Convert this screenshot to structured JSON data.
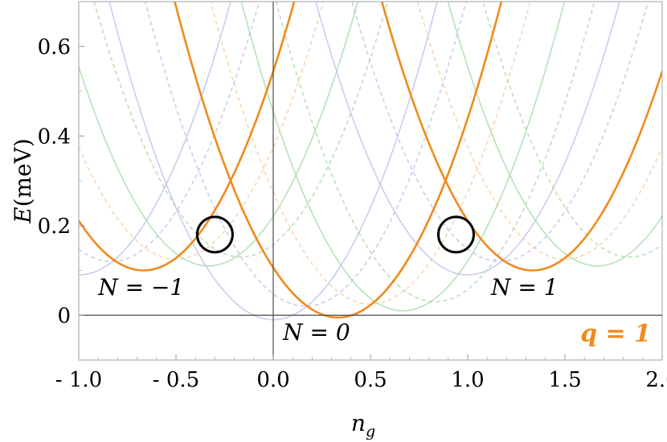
{
  "chart_data": {
    "type": "line",
    "title": "",
    "xlabel": "n_g",
    "xlabel_main": "n",
    "xlabel_sub": "g",
    "ylabel": "E(meV)",
    "ylabel_italic": "E",
    "ylabel_rest": "(meV)",
    "xlim": [
      -1.0,
      2.0
    ],
    "ylim": [
      -0.1,
      0.7
    ],
    "x_ticks": [
      {
        "value": -1.0,
        "label": "- 1.0"
      },
      {
        "value": -0.5,
        "label": "- 0.5"
      },
      {
        "value": 0.0,
        "label": "0.0"
      },
      {
        "value": 0.5,
        "label": "0.5"
      },
      {
        "value": 1.0,
        "label": "1.0"
      },
      {
        "value": 1.5,
        "label": "1.5"
      },
      {
        "value": 2.0,
        "label": "2.0"
      }
    ],
    "y_ticks": [
      {
        "value": 0.0,
        "label": "0"
      },
      {
        "value": 0.2,
        "label": "0.2"
      },
      {
        "value": 0.4,
        "label": "0.4"
      },
      {
        "value": 0.6,
        "label": "0.6"
      }
    ],
    "grid": false,
    "colors": {
      "highlight": "#f08a1c",
      "green": "#9fd79f",
      "blue": "#b9b9ec",
      "orange_faint": "#f7c79a",
      "circle": "#000000"
    },
    "series": [
      {
        "group": "highlight",
        "curvature": 1.0,
        "points": [
          {
            "n": -1,
            "x": -0.6667,
            "y": 0.1
          },
          {
            "n": 0,
            "x": 0.3333,
            "y": -0.005
          },
          {
            "n": 1,
            "x": 1.3333,
            "y": 0.1
          }
        ]
      },
      {
        "group": "green",
        "curvature": 1.0,
        "points": [
          {
            "n": -1,
            "x": -0.3333,
            "y": 0.11
          },
          {
            "n": 0,
            "x": 0.6667,
            "y": 0.01
          },
          {
            "n": 1,
            "x": 1.6667,
            "y": 0.11
          }
        ]
      },
      {
        "group": "blue",
        "curvature": 1.0,
        "points": [
          {
            "n": -1,
            "x": -1.0,
            "y": 0.09
          },
          {
            "n": 0,
            "x": 0.0,
            "y": -0.01
          },
          {
            "n": 1,
            "x": 1.0,
            "y": 0.09
          }
        ]
      },
      {
        "group": "green",
        "dashed": true,
        "curvature": 1.0,
        "points": [
          {
            "n": -1,
            "x": -0.1667,
            "y": 0.13
          },
          {
            "n": 0,
            "x": 0.8333,
            "y": 0.03
          },
          {
            "n": 1,
            "x": 1.8333,
            "y": 0.13
          }
        ]
      },
      {
        "group": "orange_faint",
        "dashed": true,
        "curvature": 1.0,
        "points": [
          {
            "n": -1,
            "x": -0.5,
            "y": 0.125
          },
          {
            "n": 0,
            "x": 0.5,
            "y": 0.025
          },
          {
            "n": 1,
            "x": 1.5,
            "y": 0.125
          }
        ]
      },
      {
        "group": "blue",
        "dashed": true,
        "curvature": 1.0,
        "points": [
          {
            "n": -1,
            "x": -0.8333,
            "y": 0.12
          },
          {
            "n": 0,
            "x": 0.1667,
            "y": 0.02
          },
          {
            "n": 1,
            "x": 1.1667,
            "y": 0.12
          }
        ]
      }
    ],
    "annotations": [
      {
        "text": "N = −1",
        "x": -0.9,
        "y": 0.045
      },
      {
        "text": "N = 0",
        "x": 0.05,
        "y": -0.055
      },
      {
        "text": "N = 1",
        "x": 1.12,
        "y": 0.045
      }
    ],
    "corner_label": "q = 1",
    "circles": [
      {
        "x": -0.3,
        "y": 0.18
      },
      {
        "x": 0.94,
        "y": 0.18
      }
    ]
  }
}
